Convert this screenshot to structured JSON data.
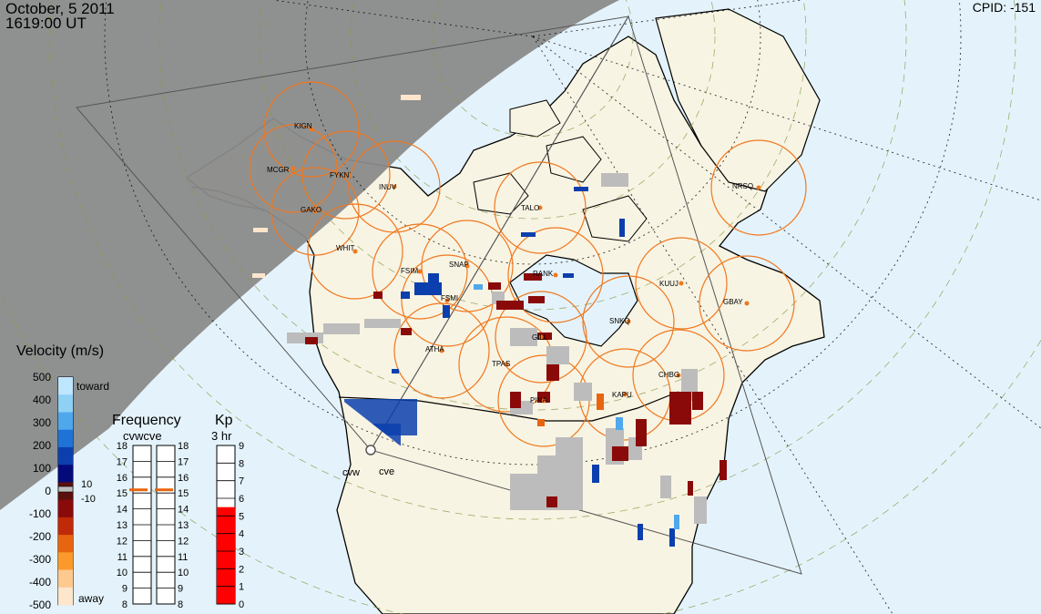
{
  "header": {
    "date": "October, 5 2011",
    "time": "1619:00 UT",
    "cpid": "CPID:  -151"
  },
  "stations": [
    {
      "code": "KIGN"
    },
    {
      "code": "MCGR"
    },
    {
      "code": "FYKN"
    },
    {
      "code": "INUV"
    },
    {
      "code": "GAKO"
    },
    {
      "code": "WHIT"
    },
    {
      "code": "FSIM"
    },
    {
      "code": "SNAP"
    },
    {
      "code": "FSMI"
    },
    {
      "code": "TALO"
    },
    {
      "code": "RANK"
    },
    {
      "code": "ATHA"
    },
    {
      "code": "TPAS"
    },
    {
      "code": "GILL"
    },
    {
      "code": "PINA"
    },
    {
      "code": "SNKQ"
    },
    {
      "code": "KUUJ"
    },
    {
      "code": "GBAY"
    },
    {
      "code": "CHBG"
    },
    {
      "code": "KAPU"
    },
    {
      "code": "NRSQ"
    }
  ],
  "radars": {
    "left": "cvw",
    "right": "cve"
  },
  "velocity": {
    "title": "Velocity (m/s)",
    "ticks": [
      "500",
      "400",
      "300",
      "200",
      "100",
      "0",
      "-100",
      "-200",
      "-300",
      "-400",
      "-500"
    ],
    "toward": "toward",
    "away": "away",
    "gs_pos": "10",
    "gs_neg": "-10",
    "colors": [
      "#bfe6ff",
      "#8fd0f5",
      "#4fa8ec",
      "#1f73d6",
      "#0c3fae",
      "#050a7a",
      "#5a0f0f",
      "#8a0a0a",
      "#c02a08",
      "#e8650f",
      "#fb9a2a",
      "#fdc98f",
      "#fde6cc"
    ]
  },
  "frequency": {
    "title": "Frequency",
    "subtitle": "cvwcve",
    "ticks": [
      "18",
      "17",
      "16",
      "15",
      "14",
      "13",
      "12",
      "11",
      "10",
      "9",
      "8"
    ],
    "cvw_value": 15.2,
    "cve_value": 15.2
  },
  "kp": {
    "title": "Kp",
    "subtitle": "3 hr",
    "ticks": [
      "9",
      "8",
      "7",
      "6",
      "5",
      "4",
      "3",
      "2",
      "1",
      "0"
    ],
    "value": 5.5,
    "color": "#ff0000"
  },
  "colors": {
    "land": "#f8f4e3",
    "ocean": "#e4f3fb",
    "night": "#8a8a8a",
    "station_circle": "#f07820",
    "toward": "#0c3fae",
    "away": "#8a0a0a",
    "ground_scatter": "#bcbcbc"
  }
}
